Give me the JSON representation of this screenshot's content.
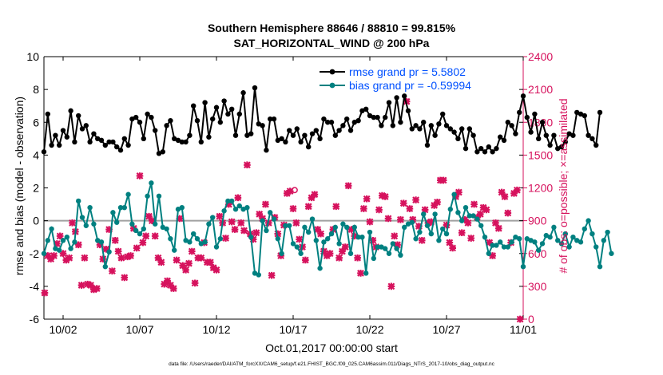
{
  "title_line1": "Southern Hemisphere 88646 / 88810 = 99.815%",
  "title_line2": "SAT_HORIZONTAL_WIND @ 200 hPa",
  "xlabel": "Oct.01,2017 00:00:00 start",
  "ylabel_left": "rmse and bias (model - observation)",
  "ylabel_right": "# of obs: o=possible; ×=assimilated",
  "footnote": "data file: /Users/raeder/DAI/ATM_forcXX/CAM6_setup/f.e21.FHIST_BGC.f09_025.CAM6assim.011/Diags_NTrS_2017-10/obs_diag_output.nc",
  "colors": {
    "rmse": "#000000",
    "bias": "#008080",
    "obs": "#d6125d",
    "legend_text": "#0050ff",
    "zero_line": "#a0a0a0"
  },
  "chart_data": {
    "type": "line",
    "x_ticks": [
      {
        "x": 2,
        "label": "10/02"
      },
      {
        "x": 7,
        "label": "10/07"
      },
      {
        "x": 12,
        "label": "10/12"
      },
      {
        "x": 17,
        "label": "10/17"
      },
      {
        "x": 22,
        "label": "10/22"
      },
      {
        "x": 27,
        "label": "10/27"
      },
      {
        "x": 32,
        "label": "11/01"
      }
    ],
    "xlim": [
      0.75,
      32.0
    ],
    "ylim_left": [
      -6,
      10
    ],
    "yticks_left": [
      -6,
      -4,
      -2,
      0,
      2,
      4,
      6,
      8,
      10
    ],
    "ylim_right": [
      0,
      2400
    ],
    "yticks_right": [
      0,
      300,
      600,
      900,
      1200,
      1500,
      1800,
      2100,
      2400
    ],
    "grid": false,
    "legend_position": "top-right",
    "series": [
      {
        "name": "rmse grand pr = 5.5802",
        "axis": "left",
        "marker": "dot",
        "x0": 0.75,
        "dx": 0.25,
        "values": [
          4.2,
          6.5,
          4.6,
          5.2,
          4.6,
          5.5,
          5.1,
          6.7,
          4.8,
          6.4,
          5.6,
          5.8,
          4.8,
          5.3,
          5.0,
          4.9,
          4.6,
          4.8,
          4.8,
          4.5,
          4.3,
          5.0,
          4.6,
          6.2,
          6.3,
          6.0,
          5.0,
          6.5,
          6.3,
          5.5,
          4.1,
          4.2,
          5.8,
          6.1,
          5.0,
          4.9,
          4.8,
          4.8,
          5.2,
          7.0,
          6.1,
          4.8,
          7.2,
          5.1,
          6.2,
          6.9,
          6.0,
          7.3,
          6.5,
          6.8,
          5.2,
          6.5,
          7.8,
          5.2,
          5.3,
          8.1,
          5.9,
          5.8,
          4.3,
          6.2,
          6.2,
          4.9,
          5.0,
          4.8,
          5.5,
          5.2,
          5.6,
          4.8,
          5.2,
          4.5,
          5.3,
          5.5,
          5.0,
          6.2,
          6.0,
          6.0,
          5.2,
          5.5,
          5.8,
          6.2,
          5.5,
          6.0,
          6.1,
          6.7,
          6.8,
          6.4,
          6.3,
          6.3,
          5.8,
          6.3,
          7.2,
          5.8,
          7.5,
          6.0,
          7.6,
          6.7,
          5.6,
          5.8,
          5.6,
          6.0,
          4.6,
          5.8,
          5.2,
          5.9,
          6.5,
          5.8,
          5.6,
          5.4,
          5.0,
          5.6,
          4.4,
          5.6,
          5.2,
          4.2,
          4.4,
          4.2,
          4.5,
          4.2,
          4.4,
          5.1,
          4.9,
          6.0,
          5.8,
          5.3,
          6.6,
          7.6,
          6.3,
          5.4,
          6.5,
          5.0,
          6.0,
          5.2,
          4.6,
          5.2,
          4.4,
          4.5,
          4.8,
          5.3,
          5.2,
          6.6,
          6.5,
          6.4,
          5.2,
          5.0,
          4.6,
          6.6
        ]
      },
      {
        "name": "bias grand pr = -0.59994",
        "axis": "left",
        "marker": "dot",
        "x0": 0.75,
        "dx": 0.25,
        "values": [
          -2.0,
          -1.2,
          -0.5,
          -1.7,
          -1.8,
          -1.2,
          -1.0,
          -1.7,
          -1.3,
          1.2,
          0.2,
          -0.3,
          0.8,
          -0.2,
          -1.2,
          -1.3,
          -2.8,
          -1.9,
          0.5,
          -0.1,
          0.8,
          0.8,
          1.6,
          -0.2,
          -0.6,
          -0.8,
          -0.5,
          1.5,
          2.3,
          -0.2,
          1.5,
          -0.4,
          -0.5,
          -1.1,
          -1.8,
          0.7,
          0.8,
          -1.2,
          -1.3,
          -0.8,
          -1.1,
          -1.4,
          -1.3,
          -0.2,
          0.2,
          -1.6,
          -1.1,
          0.6,
          1.2,
          1.2,
          0.7,
          0.9,
          0.7,
          0.8,
          -1.0,
          -3.2,
          -3.3,
          0.0,
          -0.6,
          0.5,
          0.1,
          -1.1,
          -2.0,
          -0.3,
          -0.3,
          -1.4,
          -1.6,
          -2.0,
          -0.4,
          -0.7,
          0.1,
          -1.2,
          -2.9,
          -1.3,
          -1.1,
          -0.8,
          -0.4,
          -1.4,
          -0.2,
          -0.4,
          -2.0,
          -0.4,
          -1.0,
          -1.0,
          -3.2,
          -0.7,
          -2.3,
          -1.6,
          -1.6,
          -1.7,
          -2.0,
          -1.4,
          -1.7,
          -2.1,
          -0.4,
          -0.2,
          -0.1,
          -1.1,
          -0.7,
          0.4,
          -0.3,
          -0.8,
          0.4,
          -1.2,
          -0.5,
          -0.8,
          0.7,
          1.6,
          0.5,
          0.0,
          0.8,
          0.3,
          0.3,
          0.1,
          -0.3,
          -1.0,
          -2.0,
          -1.5,
          -1.5,
          -1.3,
          -1.6,
          -1.6,
          -1.3,
          -1.0,
          -1.1,
          -2.8,
          -1.1,
          -1.2,
          -1.3,
          -1.8,
          -1.4,
          -0.9,
          -1.0,
          -0.4,
          -1.2,
          -1.4,
          -0.8,
          -1.6,
          -1.0,
          -1.2,
          -1.3,
          -0.5,
          0.0,
          -0.8,
          -1.6,
          -2.8,
          -1.2,
          -0.7,
          -2.0
        ]
      },
      {
        "name": "# of obs assimilated",
        "axis": "right",
        "marker": "x",
        "points": [
          [
            0.8,
            240
          ],
          [
            1.0,
            580
          ],
          [
            1.2,
            550
          ],
          [
            1.4,
            580
          ],
          [
            1.6,
            690
          ],
          [
            1.8,
            760
          ],
          [
            2.0,
            600
          ],
          [
            2.2,
            540
          ],
          [
            2.4,
            560
          ],
          [
            2.6,
            880
          ],
          [
            2.8,
            800
          ],
          [
            3.0,
            680
          ],
          [
            3.2,
            310
          ],
          [
            3.4,
            560
          ],
          [
            3.6,
            320
          ],
          [
            3.8,
            310
          ],
          [
            4.0,
            270
          ],
          [
            4.2,
            280
          ],
          [
            4.4,
            680
          ],
          [
            4.6,
            550
          ],
          [
            4.8,
            640
          ],
          [
            5.0,
            820
          ],
          [
            5.2,
            440
          ],
          [
            5.4,
            720
          ],
          [
            5.6,
            620
          ],
          [
            5.8,
            560
          ],
          [
            6.0,
            380
          ],
          [
            6.2,
            570
          ],
          [
            6.4,
            580
          ],
          [
            6.6,
            830
          ],
          [
            6.8,
            650
          ],
          [
            7.0,
            1310
          ],
          [
            7.2,
            700
          ],
          [
            7.4,
            760
          ],
          [
            7.6,
            940
          ],
          [
            7.8,
            900
          ],
          [
            8.0,
            760
          ],
          [
            8.2,
            560
          ],
          [
            8.4,
            520
          ],
          [
            8.6,
            320
          ],
          [
            8.8,
            350
          ],
          [
            9.0,
            310
          ],
          [
            9.2,
            280
          ],
          [
            9.4,
            540
          ],
          [
            9.6,
            920
          ],
          [
            9.8,
            490
          ],
          [
            10.0,
            450
          ],
          [
            10.2,
            510
          ],
          [
            10.4,
            620
          ],
          [
            10.6,
            330
          ],
          [
            10.8,
            560
          ],
          [
            11.0,
            560
          ],
          [
            11.2,
            700
          ],
          [
            11.4,
            520
          ],
          [
            11.6,
            520
          ],
          [
            11.8,
            470
          ],
          [
            12.0,
            450
          ],
          [
            12.2,
            940
          ],
          [
            12.4,
            880
          ],
          [
            12.6,
            740
          ],
          [
            12.8,
            1050
          ],
          [
            13.0,
            890
          ],
          [
            13.2,
            820
          ],
          [
            13.4,
            1110
          ],
          [
            13.6,
            880
          ],
          [
            13.8,
            810
          ],
          [
            14.0,
            1410
          ],
          [
            14.2,
            780
          ],
          [
            14.4,
            730
          ],
          [
            14.6,
            790
          ],
          [
            14.8,
            960
          ],
          [
            15.0,
            920
          ],
          [
            15.2,
            1050
          ],
          [
            15.4,
            880
          ],
          [
            15.6,
            400
          ],
          [
            15.8,
            930
          ],
          [
            16.0,
            780
          ],
          [
            16.2,
            580
          ],
          [
            16.4,
            860
          ],
          [
            16.6,
            1150
          ],
          [
            16.8,
            1170
          ],
          [
            17.0,
            1010
          ],
          [
            17.2,
            880
          ],
          [
            17.4,
            730
          ],
          [
            17.6,
            660
          ],
          [
            17.8,
            540
          ],
          [
            18.0,
            1030
          ],
          [
            18.2,
            1110
          ],
          [
            18.4,
            1140
          ],
          [
            18.6,
            820
          ],
          [
            18.8,
            780
          ],
          [
            19.0,
            620
          ],
          [
            19.2,
            580
          ],
          [
            19.4,
            600
          ],
          [
            19.6,
            820
          ],
          [
            19.8,
            1030
          ],
          [
            20.0,
            560
          ],
          [
            20.2,
            620
          ],
          [
            20.4,
            660
          ],
          [
            20.6,
            1220
          ],
          [
            20.8,
            820
          ],
          [
            21.0,
            760
          ],
          [
            21.2,
            560
          ],
          [
            21.4,
            420
          ],
          [
            21.6,
            1010
          ],
          [
            21.8,
            1100
          ],
          [
            22.0,
            890
          ],
          [
            22.2,
            720
          ],
          [
            22.4,
            660
          ],
          [
            22.6,
            1000
          ],
          [
            22.8,
            1130
          ],
          [
            23.0,
            1120
          ],
          [
            23.2,
            920
          ],
          [
            23.4,
            300
          ],
          [
            23.6,
            760
          ],
          [
            23.8,
            680
          ],
          [
            24.0,
            910
          ],
          [
            24.2,
            1060
          ],
          [
            24.4,
            1990
          ],
          [
            24.6,
            1010
          ],
          [
            24.8,
            910
          ],
          [
            25.0,
            1090
          ],
          [
            25.2,
            850
          ],
          [
            25.4,
            720
          ],
          [
            25.6,
            1000
          ],
          [
            25.8,
            880
          ],
          [
            26.0,
            890
          ],
          [
            26.2,
            1040
          ],
          [
            26.4,
            1070
          ],
          [
            26.6,
            1270
          ],
          [
            26.8,
            1270
          ],
          [
            27.0,
            860
          ],
          [
            27.2,
            700
          ],
          [
            27.4,
            650
          ],
          [
            27.6,
            1120
          ],
          [
            27.8,
            1160
          ],
          [
            28.0,
            790
          ],
          [
            28.2,
            910
          ],
          [
            28.4,
            880
          ],
          [
            28.6,
            740
          ],
          [
            28.8,
            1050
          ],
          [
            29.0,
            930
          ],
          [
            29.2,
            960
          ],
          [
            29.4,
            1020
          ],
          [
            29.6,
            1000
          ],
          [
            29.8,
            700
          ],
          [
            30.0,
            580
          ],
          [
            30.2,
            880
          ],
          [
            30.4,
            830
          ],
          [
            30.6,
            1160
          ],
          [
            30.8,
            1120
          ],
          [
            31.0,
            970
          ],
          [
            31.2,
            700
          ],
          [
            31.4,
            1150
          ],
          [
            31.6,
            1180
          ],
          [
            31.8,
            0
          ]
        ]
      },
      {
        "name": "# of obs possible",
        "axis": "right",
        "marker": "o",
        "points": [
          [
            17.1,
            1180
          ]
        ]
      }
    ]
  }
}
